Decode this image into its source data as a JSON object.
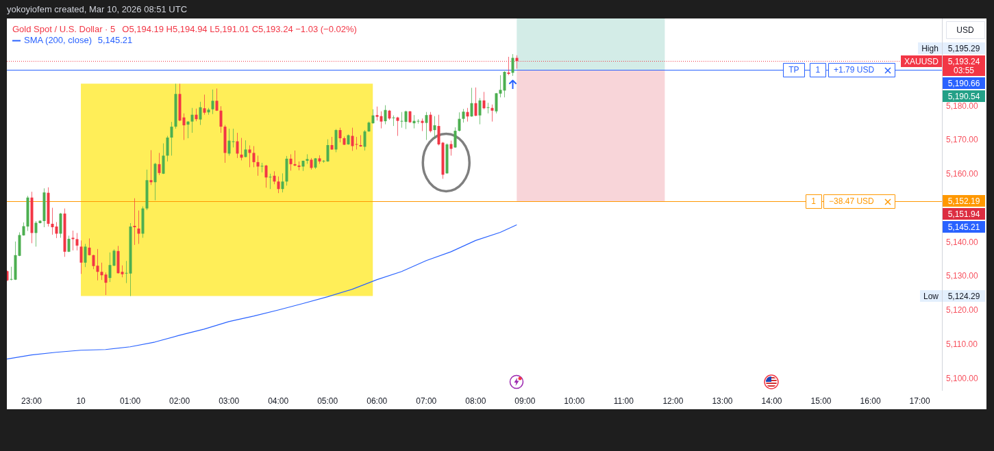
{
  "chart_data": {
    "type": "candlestick",
    "title": "Gold Spot / U.S. Dollar · 5",
    "subtitle": "O5,194.19 H5,194.94 L5,191.01 C5,193.24 −1.03 (−0.02%)",
    "ylabel": "USD",
    "annotations": [
      "yokoyiofem created, Mar 10, 2026 08:51 UTC",
      "5,145.21",
      "5,195.29",
      "High",
      "5,124.29",
      "Low",
      "03:55",
      "5,145.21",
      "5,190.54",
      "5,151.94",
      {
        "text": "XAUUSD",
        "y": 5193.24
      },
      {
        "text": "TP",
        "x": "2026-03-10T14:27",
        "y": 5190.66
      },
      {
        "text": "1",
        "x": "2026-03-10T14:56",
        "y": 5190.66
      },
      {
        "text": "+1.79 USD",
        "x": "2026-03-10T15:40",
        "y": 5190.66
      },
      {
        "text": "1",
        "x": "2026-03-10T14:51",
        "y": 5152.19
      },
      {
        "text": "−38.47 USD",
        "x": "2026-03-10T15:37",
        "y": 5152.19
      }
    ],
    "x": [
      "2026-03-09T22:30",
      "2026-03-09T22:35",
      "2026-03-09T22:40",
      "2026-03-09T22:45",
      "2026-03-09T22:50",
      "2026-03-09T22:55",
      "2026-03-09T23:00",
      "2026-03-09T23:05",
      "2026-03-09T23:10",
      "2026-03-09T23:15",
      "2026-03-09T23:20",
      "2026-03-09T23:25",
      "2026-03-09T23:30",
      "2026-03-09T23:35",
      "2026-03-09T23:40",
      "2026-03-09T23:45",
      "2026-03-09T23:50",
      "2026-03-09T23:55",
      "2026-03-10T00:00",
      "2026-03-10T00:05",
      "2026-03-10T00:10",
      "2026-03-10T00:15",
      "2026-03-10T00:20",
      "2026-03-10T00:25",
      "2026-03-10T00:30",
      "2026-03-10T00:35",
      "2026-03-10T00:40",
      "2026-03-10T00:45",
      "2026-03-10T00:50",
      "2026-03-10T00:55",
      "2026-03-10T01:00",
      "2026-03-10T01:05",
      "2026-03-10T01:10",
      "2026-03-10T01:15",
      "2026-03-10T01:20",
      "2026-03-10T01:25",
      "2026-03-10T01:30",
      "2026-03-10T01:35",
      "2026-03-10T01:40",
      "2026-03-10T01:45",
      "2026-03-10T01:50",
      "2026-03-10T01:55",
      "2026-03-10T02:00",
      "2026-03-10T02:05",
      "2026-03-10T02:10",
      "2026-03-10T02:15",
      "2026-03-10T02:20",
      "2026-03-10T02:25",
      "2026-03-10T02:30",
      "2026-03-10T02:35",
      "2026-03-10T02:40",
      "2026-03-10T02:45",
      "2026-03-10T02:50",
      "2026-03-10T02:55",
      "2026-03-10T03:00",
      "2026-03-10T03:05",
      "2026-03-10T03:10",
      "2026-03-10T03:15",
      "2026-03-10T03:20",
      "2026-03-10T03:25",
      "2026-03-10T03:30",
      "2026-03-10T03:35",
      "2026-03-10T03:40",
      "2026-03-10T03:45",
      "2026-03-10T03:50",
      "2026-03-10T03:55",
      "2026-03-10T04:00",
      "2026-03-10T04:05",
      "2026-03-10T04:10",
      "2026-03-10T04:15",
      "2026-03-10T04:20",
      "2026-03-10T04:25",
      "2026-03-10T04:30",
      "2026-03-10T04:35",
      "2026-03-10T04:40",
      "2026-03-10T04:45",
      "2026-03-10T04:50",
      "2026-03-10T04:55",
      "2026-03-10T05:00",
      "2026-03-10T05:05",
      "2026-03-10T05:10",
      "2026-03-10T05:15",
      "2026-03-10T05:20",
      "2026-03-10T05:25",
      "2026-03-10T05:30",
      "2026-03-10T05:35",
      "2026-03-10T05:40",
      "2026-03-10T05:45",
      "2026-03-10T05:50",
      "2026-03-10T05:55",
      "2026-03-10T06:00",
      "2026-03-10T06:05",
      "2026-03-10T06:10",
      "2026-03-10T06:15",
      "2026-03-10T06:20",
      "2026-03-10T06:25",
      "2026-03-10T06:30",
      "2026-03-10T06:35",
      "2026-03-10T06:40",
      "2026-03-10T06:45",
      "2026-03-10T06:50",
      "2026-03-10T06:55",
      "2026-03-10T07:00",
      "2026-03-10T07:05",
      "2026-03-10T07:10",
      "2026-03-10T07:15",
      "2026-03-10T07:20",
      "2026-03-10T07:25",
      "2026-03-10T07:30",
      "2026-03-10T07:35",
      "2026-03-10T07:40",
      "2026-03-10T07:45",
      "2026-03-10T07:50",
      "2026-03-10T07:55",
      "2026-03-10T08:00",
      "2026-03-10T08:05",
      "2026-03-10T08:10",
      "2026-03-10T08:15",
      "2026-03-10T08:20",
      "2026-03-10T08:25",
      "2026-03-10T08:30",
      "2026-03-10T08:35",
      "2026-03-10T08:40",
      "2026-03-10T08:45",
      "2026-03-10T08:50"
    ],
    "ohlc": [
      [
        5131.6,
        5131.8,
        5128.7,
        5128.9
      ],
      [
        5129.1,
        5132.9,
        5128.9,
        5129.3
      ],
      [
        5129.1,
        5140.3,
        5129.0,
        5136.3
      ],
      [
        5136.1,
        5143.0,
        5136.0,
        5142.2
      ],
      [
        5142.1,
        5145.9,
        5142.0,
        5144.8
      ],
      [
        5144.7,
        5153.7,
        5143.4,
        5153.2
      ],
      [
        5153.2,
        5154.9,
        5139.8,
        5142.8
      ],
      [
        5142.8,
        5146.3,
        5138.8,
        5145.8
      ],
      [
        5145.7,
        5146.5,
        5145.6,
        5146.4
      ],
      [
        5146.3,
        5155.9,
        5144.5,
        5154.7
      ],
      [
        5154.6,
        5156.2,
        5144.7,
        5145.5
      ],
      [
        5145.5,
        5150.2,
        5142.3,
        5144.5
      ],
      [
        5144.7,
        5146.0,
        5141.3,
        5142.6
      ],
      [
        5142.6,
        5148.7,
        5141.4,
        5148.5
      ],
      [
        5148.5,
        5150.0,
        5135.8,
        5137.3
      ],
      [
        5137.3,
        5142.0,
        5137.2,
        5141.1
      ],
      [
        5141.4,
        5143.5,
        5137.7,
        5141.0
      ],
      [
        5141.0,
        5142.8,
        5137.7,
        5139.1
      ],
      [
        5138.8,
        5140.6,
        5130.8,
        5134.1
      ],
      [
        5134.1,
        5139.6,
        5132.8,
        5138.8
      ],
      [
        5138.5,
        5141.2,
        5136.2,
        5136.3
      ],
      [
        5136.3,
        5136.4,
        5132.2,
        5133.1
      ],
      [
        5133.2,
        5138.1,
        5128.9,
        5131.4
      ],
      [
        5131.4,
        5134.1,
        5129.0,
        5130.4
      ],
      [
        5130.6,
        5131.2,
        5124.6,
        5128.2
      ],
      [
        5129.6,
        5137.1,
        5128.4,
        5133.4
      ],
      [
        5133.2,
        5138.0,
        5133.1,
        5137.6
      ],
      [
        5137.5,
        5139.0,
        5130.9,
        5131.0
      ],
      [
        5131.4,
        5133.3,
        5129.8,
        5130.7
      ],
      [
        5130.9,
        5134.6,
        5128.1,
        5131.1
      ],
      [
        5130.9,
        5145.7,
        5124.29,
        5144.7
      ],
      [
        5144.9,
        5153.0,
        5139.3,
        5144.5
      ],
      [
        5144.1,
        5149.4,
        5139.6,
        5142.6
      ],
      [
        5142.6,
        5150.6,
        5141.4,
        5150.0
      ],
      [
        5150.0,
        5161.4,
        5149.5,
        5158.3
      ],
      [
        5158.3,
        5167.1,
        5156.9,
        5157.7
      ],
      [
        5157.7,
        5163.4,
        5152.4,
        5163.1
      ],
      [
        5163.0,
        5166.3,
        5159.8,
        5160.4
      ],
      [
        5160.2,
        5169.1,
        5160.1,
        5165.5
      ],
      [
        5165.5,
        5171.3,
        5163.8,
        5170.8
      ],
      [
        5170.8,
        5175.4,
        5165.5,
        5174.0
      ],
      [
        5174.0,
        5186.6,
        5173.4,
        5183.6
      ],
      [
        5183.6,
        5186.6,
        5175.6,
        5175.8
      ],
      [
        5176.7,
        5177.9,
        5170.1,
        5174.4
      ],
      [
        5174.6,
        5175.6,
        5170.6,
        5175.5
      ],
      [
        5175.5,
        5179.5,
        5172.2,
        5177.5
      ],
      [
        5177.5,
        5179.3,
        5175.6,
        5176.2
      ],
      [
        5176.1,
        5181.3,
        5174.5,
        5179.7
      ],
      [
        5179.4,
        5183.4,
        5177.5,
        5178.1
      ],
      [
        5178.2,
        5179.5,
        5177.5,
        5179.0
      ],
      [
        5179.1,
        5184.9,
        5177.7,
        5181.6
      ],
      [
        5181.6,
        5185.2,
        5178.6,
        5178.7
      ],
      [
        5178.7,
        5180.0,
        5172.2,
        5174.0
      ],
      [
        5174.0,
        5174.5,
        5163.4,
        5166.3
      ],
      [
        5166.1,
        5173.4,
        5165.5,
        5169.9
      ],
      [
        5169.6,
        5173.4,
        5167.9,
        5169.7
      ],
      [
        5169.7,
        5172.2,
        5164.8,
        5166.1
      ],
      [
        5165.8,
        5170.7,
        5164.1,
        5164.9
      ],
      [
        5165.1,
        5170.0,
        5165.0,
        5167.3
      ],
      [
        5167.3,
        5168.5,
        5162.1,
        5166.3
      ],
      [
        5166.3,
        5168.3,
        5162.1,
        5163.6
      ],
      [
        5163.6,
        5165.5,
        5159.6,
        5162.3
      ],
      [
        5162.4,
        5163.4,
        5160.6,
        5162.5
      ],
      [
        5162.6,
        5162.8,
        5156.1,
        5159.1
      ],
      [
        5159.2,
        5160.2,
        5155.7,
        5159.3
      ],
      [
        5159.6,
        5160.9,
        5157.1,
        5157.9
      ],
      [
        5157.9,
        5159.4,
        5154.5,
        5155.7
      ],
      [
        5155.7,
        5160.3,
        5154.7,
        5157.9
      ],
      [
        5157.9,
        5165.4,
        5156.7,
        5164.6
      ],
      [
        5164.6,
        5165.9,
        5161.1,
        5163.0
      ],
      [
        5163.0,
        5167.0,
        5162.4,
        5162.6
      ],
      [
        5162.6,
        5163.8,
        5161.2,
        5162.2
      ],
      [
        5162.3,
        5164.0,
        5161.0,
        5164.0
      ],
      [
        5164.0,
        5165.9,
        5163.1,
        5164.5
      ],
      [
        5164.3,
        5164.8,
        5161.4,
        5161.9
      ],
      [
        5162.0,
        5164.8,
        5161.6,
        5164.7
      ],
      [
        5164.7,
        5165.6,
        5163.1,
        5163.8
      ],
      [
        5163.8,
        5164.2,
        5163.4,
        5164.0
      ],
      [
        5163.8,
        5170.3,
        5163.7,
        5168.6
      ],
      [
        5168.6,
        5171.0,
        5167.2,
        5167.3
      ],
      [
        5167.3,
        5173.3,
        5166.5,
        5173.0
      ],
      [
        5173.0,
        5173.7,
        5169.4,
        5170.6
      ],
      [
        5170.6,
        5171.1,
        5168.6,
        5168.7
      ],
      [
        5168.8,
        5171.7,
        5168.7,
        5171.5
      ],
      [
        5171.3,
        5173.7,
        5166.9,
        5168.3
      ],
      [
        5168.9,
        5171.0,
        5167.3,
        5168.7
      ],
      [
        5168.6,
        5171.5,
        5168.1,
        5168.2
      ],
      [
        5168.1,
        5173.0,
        5167.0,
        5172.6
      ],
      [
        5172.6,
        5175.5,
        5172.5,
        5175.2
      ],
      [
        5175.0,
        5179.1,
        5174.9,
        5177.3
      ],
      [
        5177.4,
        5179.9,
        5175.8,
        5176.9
      ],
      [
        5177.1,
        5178.5,
        5173.5,
        5175.5
      ],
      [
        5175.6,
        5180.3,
        5174.7,
        5178.9
      ],
      [
        5178.7,
        5178.9,
        5176.0,
        5176.4
      ],
      [
        5176.6,
        5177.3,
        5174.2,
        5176.7
      ],
      [
        5176.7,
        5176.9,
        5171.3,
        5175.7
      ],
      [
        5175.6,
        5178.3,
        5173.7,
        5175.7
      ],
      [
        5175.4,
        5178.7,
        5173.3,
        5178.5
      ],
      [
        5178.5,
        5178.6,
        5175.1,
        5175.3
      ],
      [
        5175.0,
        5177.4,
        5173.5,
        5175.7
      ],
      [
        5175.6,
        5176.2,
        5174.9,
        5175.7
      ],
      [
        5175.7,
        5176.4,
        5172.7,
        5175.1
      ],
      [
        5175.1,
        5178.3,
        5170.1,
        5177.4
      ],
      [
        5177.5,
        5178.3,
        5172.3,
        5172.7
      ],
      [
        5173.0,
        5177.1,
        5170.5,
        5174.4
      ],
      [
        5174.2,
        5177.5,
        5168.5,
        5168.8
      ],
      [
        5169.3,
        5169.5,
        5158.7,
        5159.9
      ],
      [
        5160.3,
        5169.1,
        5160.2,
        5168.8
      ],
      [
        5168.9,
        5169.9,
        5165.5,
        5167.5
      ],
      [
        5167.9,
        5173.8,
        5167.8,
        5172.8
      ],
      [
        5172.8,
        5178.2,
        5172.6,
        5176.3
      ],
      [
        5176.3,
        5179.2,
        5175.2,
        5178.4
      ],
      [
        5178.3,
        5179.5,
        5175.5,
        5177.0
      ],
      [
        5177.0,
        5185.4,
        5176.9,
        5180.9
      ],
      [
        5180.9,
        5185.5,
        5177.1,
        5177.2
      ],
      [
        5177.3,
        5182.4,
        5174.7,
        5181.7
      ],
      [
        5181.7,
        5184.2,
        5179.1,
        5179.4
      ],
      [
        5179.6,
        5181.0,
        5177.9,
        5179.7
      ],
      [
        5179.5,
        5180.5,
        5175.5,
        5178.7
      ],
      [
        5178.5,
        5183.9,
        5177.9,
        5183.8
      ],
      [
        5183.7,
        5189.1,
        5182.6,
        5184.8
      ],
      [
        5184.6,
        5190.3,
        5182.6,
        5190.1
      ],
      [
        5189.9,
        5194.5,
        5189.1,
        5189.5
      ],
      [
        5189.8,
        5195.29,
        5188.9,
        5194.2
      ],
      [
        5194.19,
        5194.94,
        5191.01,
        5193.24
      ]
    ],
    "colors": [
      "#f23645",
      "#4caf50",
      "#4caf50",
      "#4caf50",
      "#4caf50",
      "#4caf50",
      "#f23645",
      "#4caf50",
      "#4caf50",
      "#4caf50",
      "#f23645",
      "#f23645",
      "#f23645",
      "#4caf50",
      "#f23645",
      "#4caf50",
      "#f23645",
      "#f23645",
      "#f23645",
      "#4caf50",
      "#f23645",
      "#f23645",
      "#f23645",
      "#f23645",
      "#f23645",
      "#4caf50",
      "#4caf50",
      "#f23645",
      "#f23645",
      "#4caf50",
      "#4caf50",
      "#f23645",
      "#f23645",
      "#4caf50",
      "#4caf50",
      "#f23645",
      "#4caf50",
      "#f23645",
      "#4caf50",
      "#4caf50",
      "#4caf50",
      "#4caf50",
      "#f23645",
      "#f23645",
      "#4caf50",
      "#4caf50",
      "#f23645",
      "#4caf50",
      "#f23645",
      "#4caf50",
      "#4caf50",
      "#f23645",
      "#f23645",
      "#f23645",
      "#4caf50",
      "#4caf50",
      "#f23645",
      "#f23645",
      "#4caf50",
      "#f23645",
      "#f23645",
      "#f23645",
      "#4caf50",
      "#f23645",
      "#4caf50",
      "#f23645",
      "#f23645",
      "#4caf50",
      "#4caf50",
      "#f23645",
      "#f23645",
      "#f23645",
      "#4caf50",
      "#4caf50",
      "#f23645",
      "#4caf50",
      "#f23645",
      "#4caf50",
      "#4caf50",
      "#f23645",
      "#4caf50",
      "#f23645",
      "#f23645",
      "#4caf50",
      "#f23645",
      "#f23645",
      "#f23645",
      "#4caf50",
      "#4caf50",
      "#4caf50",
      "#f23645",
      "#f23645",
      "#4caf50",
      "#f23645",
      "#4caf50",
      "#f23645",
      "#4caf50",
      "#4caf50",
      "#f23645",
      "#4caf50",
      "#4caf50",
      "#f23645",
      "#4caf50",
      "#f23645",
      "#4caf50",
      "#f23645",
      "#f23645",
      "#4caf50",
      "#f23645",
      "#4caf50",
      "#4caf50",
      "#4caf50",
      "#f23645",
      "#4caf50",
      "#f23645",
      "#4caf50",
      "#f23645",
      "#4caf50",
      "#f23645",
      "#4caf50",
      "#4caf50",
      "#4caf50",
      "#f23645",
      "#4caf50",
      "#f23645"
    ],
    "series": [
      {
        "type": "line",
        "name": "SMA (200, close)",
        "color": "#2962ff",
        "x": [
          "2026-03-09T22:30",
          "2026-03-09T23:00",
          "2026-03-09T23:30",
          "2026-03-10T00:00",
          "2026-03-10T00:30",
          "2026-03-10T01:00",
          "2026-03-10T01:30",
          "2026-03-10T02:00",
          "2026-03-10T02:30",
          "2026-03-10T03:00",
          "2026-03-10T03:30",
          "2026-03-10T04:00",
          "2026-03-10T04:30",
          "2026-03-10T05:00",
          "2026-03-10T05:30",
          "2026-03-10T06:00",
          "2026-03-10T06:30",
          "2026-03-10T07:00",
          "2026-03-10T07:30",
          "2026-03-10T08:00",
          "2026-03-10T08:30",
          "2026-03-10T08:50"
        ],
        "values": [
          5105.8,
          5107.0,
          5107.8,
          5108.4,
          5108.6,
          5109.4,
          5110.8,
          5112.8,
          5114.6,
          5116.8,
          5118.4,
          5120.2,
          5122.1,
          5124.1,
          5126.3,
          5129.1,
          5131.5,
          5134.7,
          5137.3,
          5140.6,
          5143.0,
          5145.21
        ]
      }
    ],
    "xlim": [
      "2026-03-09T22:30",
      "2026-03-10T17:27"
    ],
    "ylim": [
      5096.7,
      5205.75
    ],
    "xticks": [
      {
        "value": "2026-03-09T23:00",
        "label": "23:00"
      },
      {
        "value": "2026-03-10T00:00",
        "label": "10"
      },
      {
        "value": "2026-03-10T01:00",
        "label": "01:00"
      },
      {
        "value": "2026-03-10T02:00",
        "label": "02:00"
      },
      {
        "value": "2026-03-10T03:00",
        "label": "03:00"
      },
      {
        "value": "2026-03-10T04:00",
        "label": "04:00"
      },
      {
        "value": "2026-03-10T05:00",
        "label": "05:00"
      },
      {
        "value": "2026-03-10T06:00",
        "label": "06:00"
      },
      {
        "value": "2026-03-10T07:00",
        "label": "07:00"
      },
      {
        "value": "2026-03-10T08:00",
        "label": "08:00"
      },
      {
        "value": "2026-03-10T09:00",
        "label": "09:00"
      },
      {
        "value": "2026-03-10T10:00",
        "label": "10:00"
      },
      {
        "value": "2026-03-10T11:00",
        "label": "11:00"
      },
      {
        "value": "2026-03-10T12:00",
        "label": "12:00"
      },
      {
        "value": "2026-03-10T13:00",
        "label": "13:00"
      },
      {
        "value": "2026-03-10T14:00",
        "label": "14:00"
      },
      {
        "value": "2026-03-10T15:00",
        "label": "15:00"
      },
      {
        "value": "2026-03-10T16:00",
        "label": "16:00"
      },
      {
        "value": "2026-03-10T17:00",
        "label": "17:00"
      }
    ],
    "yticks": [
      {
        "value": 5100,
        "label": "5,100.00"
      },
      {
        "value": 5110,
        "label": "5,110.00"
      },
      {
        "value": 5120,
        "label": "5,120.00"
      },
      {
        "value": 5130,
        "label": "5,130.00"
      },
      {
        "value": 5140,
        "label": "5,140.00"
      },
      {
        "value": 5160,
        "label": "5,160.00"
      },
      {
        "value": 5170,
        "label": "5,170.00"
      },
      {
        "value": 5180,
        "label": "5,180.00"
      }
    ],
    "ref_lines": [
      {
        "axis": "y",
        "value": 5193.24,
        "label": "5,193.24",
        "color": "#f23645",
        "line_style": "dotted"
      },
      {
        "axis": "y",
        "value": 5190.66,
        "label": "5,190.66",
        "color": "#2962ff"
      },
      {
        "axis": "y",
        "value": 5152.19,
        "label": "5,152.19",
        "color": "#ff9800"
      }
    ],
    "bands": [
      {
        "axis": "x",
        "from": "2026-03-10T00:00",
        "to": "2026-03-10T05:55",
        "color": "#ffee58"
      },
      {
        "axis": "y",
        "from": 5190.54,
        "to": 5205.75,
        "color": "#d3ece7"
      },
      {
        "axis": "y",
        "from": 5151.94,
        "to": 5190.54,
        "color": "#f8d5d9"
      }
    ],
    "legend": "top left"
  }
}
